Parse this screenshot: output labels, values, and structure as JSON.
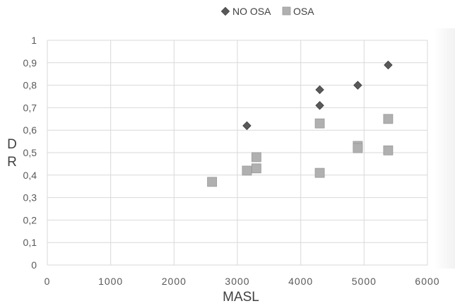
{
  "chart_data": {
    "type": "scatter",
    "title": "",
    "xlabel": "MASL",
    "ylabel": "D R",
    "xlim": [
      0,
      6000
    ],
    "ylim": [
      0,
      1
    ],
    "xticks": [
      0,
      1000,
      2000,
      3000,
      4000,
      5000,
      6000
    ],
    "yticks": [
      0,
      0.1,
      0.2,
      0.3,
      0.4,
      0.5,
      0.6,
      0.7,
      0.8,
      0.9,
      1
    ],
    "xtick_labels": [
      "0",
      "1000",
      "2000",
      "3000",
      "4000",
      "5000",
      "6000"
    ],
    "ytick_labels": [
      "0",
      "0,1",
      "0,2",
      "0,3",
      "0,4",
      "0,5",
      "0,6",
      "0,7",
      "0,8",
      "0,9",
      "1"
    ],
    "grid": true,
    "legend_position": "top-center",
    "series": [
      {
        "name": "NO OSA",
        "marker": "diamond",
        "color": "#595959",
        "points": [
          [
            3150,
            0.62
          ],
          [
            4300,
            0.78
          ],
          [
            4300,
            0.71
          ],
          [
            4900,
            0.8
          ],
          [
            5380,
            0.89
          ]
        ]
      },
      {
        "name": "OSA",
        "marker": "square",
        "color": "#b0b0b0",
        "points": [
          [
            2600,
            0.37
          ],
          [
            3150,
            0.42
          ],
          [
            3300,
            0.43
          ],
          [
            3300,
            0.48
          ],
          [
            4300,
            0.63
          ],
          [
            4300,
            0.41
          ],
          [
            4900,
            0.53
          ],
          [
            4900,
            0.52
          ],
          [
            5380,
            0.65
          ],
          [
            5380,
            0.51
          ]
        ]
      }
    ]
  }
}
